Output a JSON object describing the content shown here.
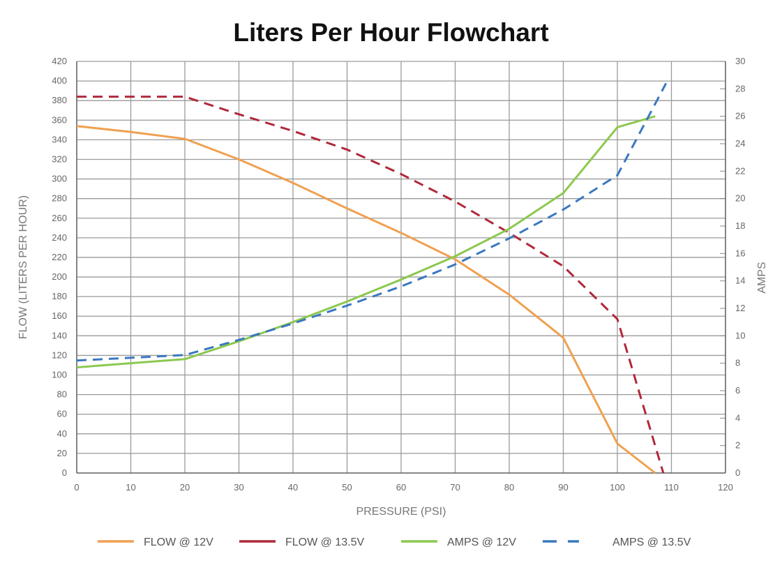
{
  "chart_data": {
    "type": "line",
    "title": "Liters Per Hour Flowchart",
    "xlabel": "PRESSURE (PSI)",
    "ylabel": "FLOW (LITERS PER HOUR)",
    "y2label": "AMPS",
    "xlim": [
      0,
      120
    ],
    "ylim": [
      0,
      420
    ],
    "y2lim": [
      0,
      30
    ],
    "xticks": [
      0,
      10,
      20,
      30,
      40,
      50,
      60,
      70,
      80,
      90,
      100,
      110,
      120
    ],
    "yticks": [
      0,
      20,
      40,
      60,
      80,
      100,
      120,
      140,
      160,
      180,
      200,
      220,
      240,
      260,
      280,
      300,
      320,
      340,
      360,
      380,
      400,
      420
    ],
    "y2ticks": [
      0,
      2,
      4,
      6,
      8,
      10,
      12,
      14,
      16,
      18,
      20,
      22,
      24,
      26,
      28,
      30
    ],
    "grid": true,
    "legend": "bottom",
    "series": [
      {
        "name": "FLOW @ 12V",
        "axis": "left",
        "color": "#f0a050",
        "dashed": false,
        "x": [
          0,
          10,
          20,
          30,
          40,
          50,
          60,
          70,
          80,
          90,
          100,
          107
        ],
        "values": [
          354,
          348,
          341,
          320,
          296,
          270,
          245,
          218,
          182,
          138,
          30,
          0
        ]
      },
      {
        "name": "FLOW @ 13.5V",
        "axis": "left",
        "color": "#b0283a",
        "dashed": true,
        "x": [
          0,
          10,
          20,
          30,
          40,
          50,
          60,
          70,
          80,
          90,
          100,
          108.5
        ],
        "values": [
          384,
          384,
          384,
          366,
          349,
          330,
          305,
          277,
          245,
          211,
          157,
          0
        ]
      },
      {
        "name": "AMPS @ 12V",
        "axis": "right",
        "color": "#8cc850",
        "dashed": false,
        "x": [
          0,
          10,
          20,
          30,
          40,
          50,
          60,
          70,
          80,
          90,
          100,
          107
        ],
        "values": [
          7.7,
          8.0,
          8.3,
          9.6,
          11.0,
          12.5,
          14.1,
          15.8,
          17.8,
          20.4,
          25.2,
          26.0
        ]
      },
      {
        "name": "AMPS @ 13.5V",
        "axis": "right",
        "color": "#3a78c0",
        "dashed": true,
        "x": [
          0,
          10,
          20,
          30,
          40,
          50,
          60,
          70,
          80,
          90,
          100,
          109
        ],
        "values": [
          8.2,
          8.4,
          8.6,
          9.7,
          10.9,
          12.2,
          13.6,
          15.2,
          17.1,
          19.2,
          21.7,
          28.4
        ]
      }
    ]
  }
}
